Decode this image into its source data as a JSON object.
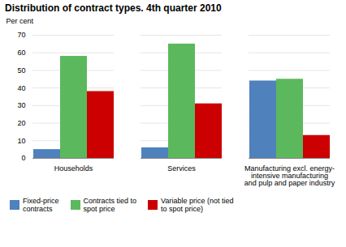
{
  "chart_data": {
    "type": "bar",
    "title": "Distribution of contract types. 4th quarter 2010",
    "ylabel": "Per cent",
    "categories": [
      "Households",
      "Services",
      "Manufacturing excl. energy-\nintensive manufacturing\nand pulp and paper industry"
    ],
    "series": [
      {
        "name": "Fixed-price\ncontracts",
        "color": "#4f81bd",
        "values": [
          5,
          6,
          44
        ]
      },
      {
        "name": "Contracts tied to\nspot price",
        "color": "#5cb85c",
        "values": [
          58,
          65,
          45
        ]
      },
      {
        "name": "Variable price (not tied\nto spot price)",
        "color": "#cc0000",
        "values": [
          38,
          31,
          13
        ]
      }
    ],
    "ylim": [
      0,
      70
    ],
    "yticks": [
      0,
      10,
      20,
      30,
      40,
      50,
      60,
      70
    ],
    "grid": true,
    "legend": "bottom"
  }
}
